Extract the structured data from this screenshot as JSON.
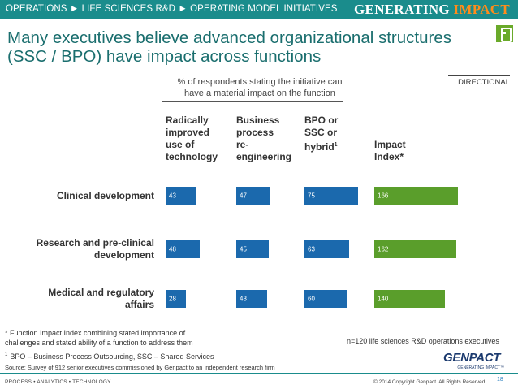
{
  "header": {
    "breadcrumb": "OPERATIONS ► LIFE SCIENCES R&D ► OPERATING MODEL INITIATIVES",
    "brand_prefix": "GENERATING",
    "brand_suffix": " IMPACT"
  },
  "title": {
    "line1": "Many executives believe advanced organizational structures",
    "line2": "(SSC / BPO) have impact across functions"
  },
  "badge": "DIRECTIONAL",
  "subtitle": {
    "line1": "% of respondents stating the initiative can",
    "line2": "have a material impact on the function"
  },
  "icon": "mobile-phone-icon",
  "colors": {
    "primary": "#1b69ad",
    "impact": "#5a9e2b",
    "header": "#1a8c8c",
    "title": "#1a6e6e"
  },
  "chart_data": {
    "type": "bar",
    "orientation": "horizontal",
    "columns": [
      {
        "lines": [
          "Radically",
          "improved",
          "use of",
          "technology"
        ]
      },
      {
        "lines": [
          "Business",
          "process",
          "re-",
          "engineering"
        ]
      },
      {
        "lines": [
          "BPO or",
          "SSC or",
          "hybrid"
        ],
        "superscript": "1"
      },
      {
        "lines": [
          "Impact",
          "Index*"
        ]
      }
    ],
    "categories": [
      {
        "lines": [
          "Clinical development"
        ]
      },
      {
        "lines": [
          "Research and pre-clinical",
          "development"
        ]
      },
      {
        "lines": [
          "Medical and regulatory",
          "affairs"
        ]
      }
    ],
    "series": [
      {
        "values": [
          43,
          48,
          28
        ]
      },
      {
        "values": [
          47,
          45,
          43
        ]
      },
      {
        "values": [
          75,
          63,
          60
        ]
      },
      {
        "values": [
          166,
          162,
          140
        ]
      }
    ],
    "value_range": {
      "percent_series": [
        0,
        100
      ],
      "impact_series": [
        0,
        180
      ]
    }
  },
  "footnotes": {
    "impact_line1": "* Function Impact Index combining stated importance of",
    "impact_line2": "challenges and stated ability of a function to address them",
    "bpo_marker": "1",
    "bpo_text": "BPO – Business Process Outsourcing, SSC – Shared Services",
    "source": "Source: Survey of 912 senior executives commissioned by Genpact to an independent research firm",
    "n_note": "n=120 life sciences R&D operations executives"
  },
  "logo": {
    "word": "GENPACT",
    "tagline": "GENERATING IMPACT™"
  },
  "footer": {
    "left": "PROCESS • ANALYTICS • TECHNOLOGY",
    "copyright": "© 2014 Copyright Genpact. All Rights Reserved.",
    "page": "18"
  }
}
